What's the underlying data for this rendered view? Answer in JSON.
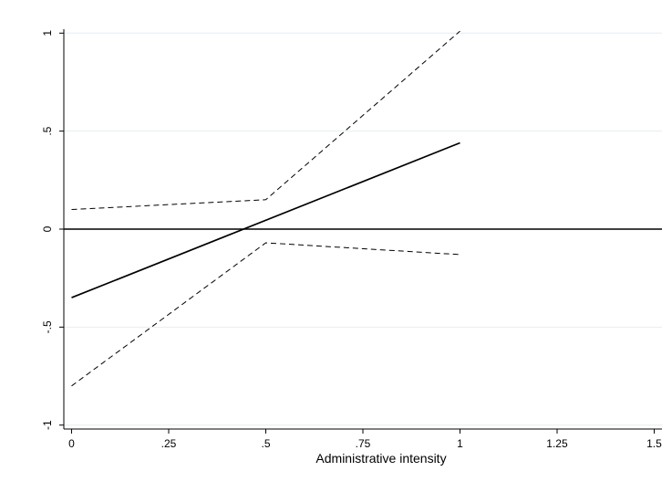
{
  "chart_data": {
    "type": "line",
    "xlabel": "Administrative intensity",
    "ylabel": "",
    "xlim": [
      -0.02,
      1.52
    ],
    "ylim": [
      -1.02,
      1.02
    ],
    "x_ticks": [
      0,
      0.25,
      0.5,
      0.75,
      1,
      1.25,
      1.5
    ],
    "x_tick_labels": [
      "0",
      ".25",
      ".5",
      ".75",
      "1",
      "1.25",
      "1.5"
    ],
    "y_ticks": [
      -1,
      -0.5,
      0,
      0.5,
      1
    ],
    "y_tick_labels": [
      "-1",
      "-.5",
      "0",
      ".5",
      "1"
    ],
    "grid": true,
    "series": [
      {
        "style": "solid",
        "x": [
          0,
          1
        ],
        "y": [
          -0.35,
          0.44
        ]
      },
      {
        "style": "dashed",
        "x": [
          0,
          0.5,
          1
        ],
        "y": [
          0.1,
          0.15,
          1.01
        ]
      },
      {
        "style": "dashed",
        "x": [
          0,
          0.5,
          1
        ],
        "y": [
          -0.8,
          -0.07,
          -0.13
        ]
      }
    ],
    "reference_lines": [
      {
        "orientation": "horizontal",
        "y": 0,
        "style": "solid"
      }
    ],
    "colors": {
      "line": "#000000",
      "grid": "#e6eef1",
      "background": "#ffffff"
    }
  }
}
